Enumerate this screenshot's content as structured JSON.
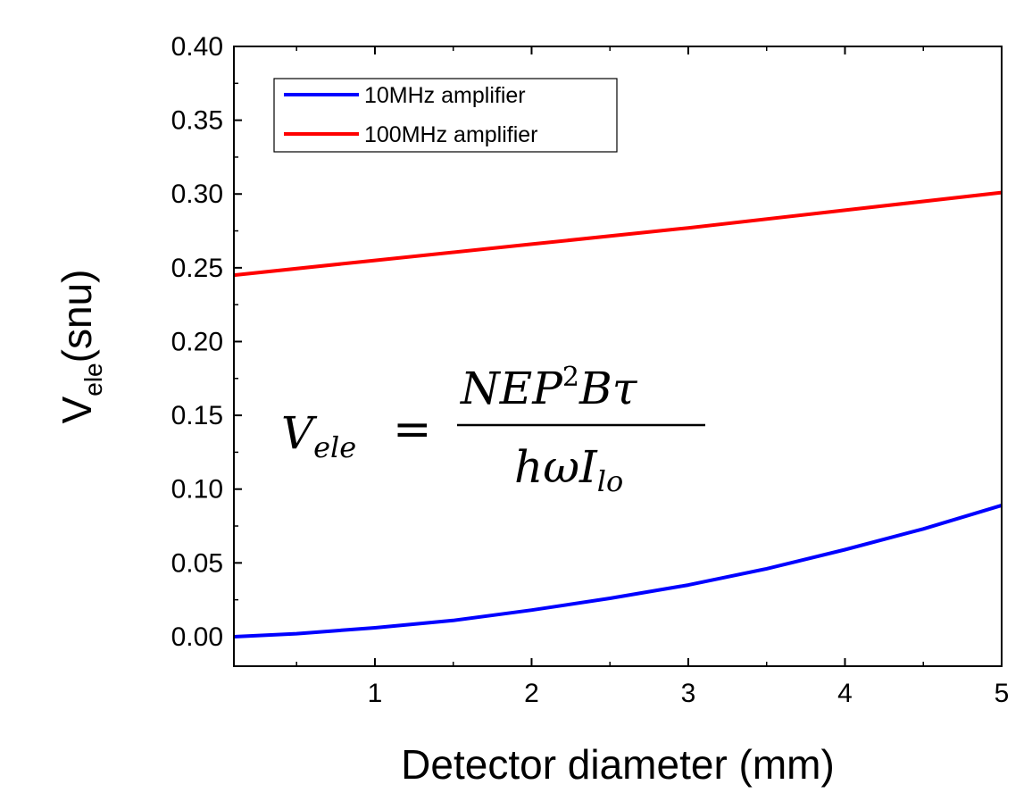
{
  "chart_data": {
    "type": "line",
    "xlabel": "Detector diameter (mm)",
    "ylabel": {
      "main": "V",
      "subscript": "ele",
      "unit": "(snu)"
    },
    "xlim": [
      0.1,
      5
    ],
    "ylim": [
      -0.02,
      0.4
    ],
    "xticks": [
      1,
      2,
      3,
      4,
      5
    ],
    "xtick_labels": [
      "1",
      "2",
      "3",
      "4",
      "5"
    ],
    "yticks": [
      0.0,
      0.05,
      0.1,
      0.15,
      0.2,
      0.25,
      0.3,
      0.35,
      0.4
    ],
    "ytick_labels": [
      "0.00",
      "0.05",
      "0.10",
      "0.15",
      "0.20",
      "0.25",
      "0.30",
      "0.35",
      "0.40"
    ],
    "grid": false,
    "legend_position": "top-left",
    "series": [
      {
        "name": "10MHz amplifier",
        "color": "#0000ff",
        "x": [
          0.1,
          0.5,
          1.0,
          1.5,
          2.0,
          2.5,
          3.0,
          3.5,
          4.0,
          4.5,
          5.0
        ],
        "y": [
          0.0,
          0.002,
          0.006,
          0.011,
          0.018,
          0.026,
          0.035,
          0.046,
          0.059,
          0.073,
          0.089
        ]
      },
      {
        "name": "100MHz amplifier",
        "color": "#ff0000",
        "x": [
          0.1,
          1.0,
          2.0,
          3.0,
          4.0,
          5.0
        ],
        "y": [
          0.245,
          0.255,
          0.266,
          0.277,
          0.289,
          0.301
        ]
      }
    ],
    "annotation": {
      "lhs": "V",
      "lhs_sub": "ele",
      "equals": "=",
      "numerator": "NEP",
      "numerator_sup": "2",
      "numerator_tail": "Bτ",
      "denominator": "hωI",
      "denominator_sub": "lo"
    }
  }
}
